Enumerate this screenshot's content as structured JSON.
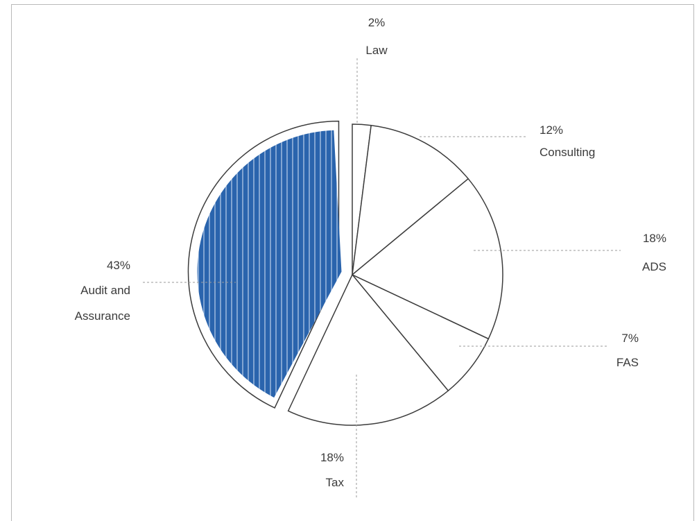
{
  "chart_data": {
    "type": "pie",
    "title": "",
    "slices": [
      {
        "label": "Law",
        "percent_label": "2%",
        "value": 2,
        "color": "#ffffff"
      },
      {
        "label": "Consulting",
        "percent_label": "12%",
        "value": 12,
        "color": "#ffffff"
      },
      {
        "label": "ADS",
        "percent_label": "18%",
        "value": 18,
        "color": "#ffffff"
      },
      {
        "label": "FAS",
        "percent_label": "7%",
        "value": 7,
        "color": "#ffffff"
      },
      {
        "label": "Tax",
        "percent_label": "18%",
        "value": 18,
        "color": "#ffffff"
      },
      {
        "label": "Audit and Assurance",
        "percent_label": "43%",
        "value": 43,
        "color": "#2a64ad",
        "exploded": true,
        "striped": true
      }
    ],
    "start_angle_deg": -90,
    "direction": "clockwise",
    "legend": "none"
  }
}
